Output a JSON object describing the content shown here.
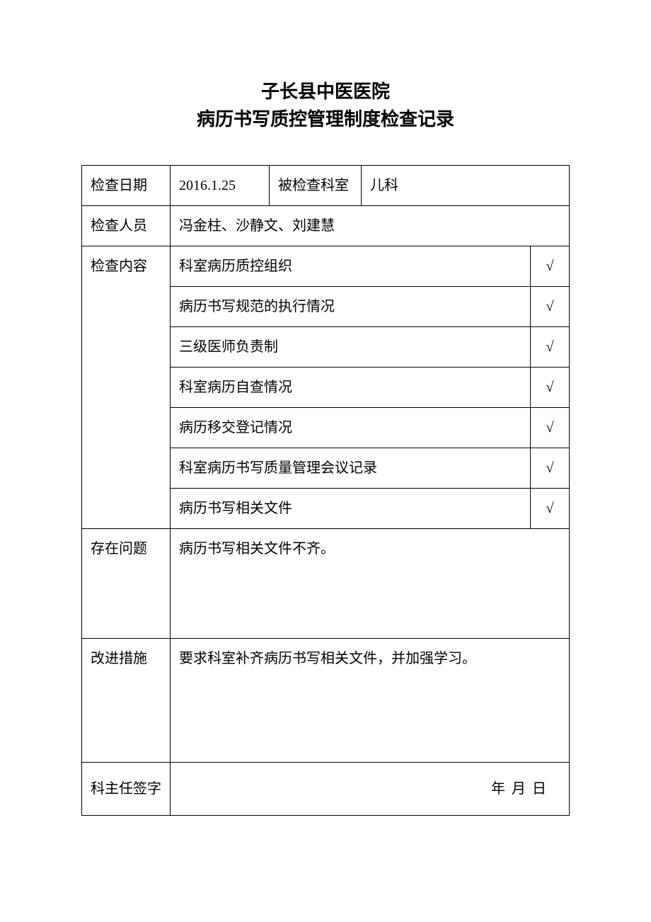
{
  "header": {
    "line1": "子长县中医医院",
    "line2": "病历书写质控管理制度检查记录"
  },
  "labels": {
    "inspection_date": "检查日期",
    "inspected_department": "被检查科室",
    "inspectors": "检查人员",
    "inspection_content": "检查内容",
    "problems": "存在问题",
    "improvements": "改进措施",
    "director_signature": "科主任签字"
  },
  "values": {
    "inspection_date": "2016.1.25",
    "inspected_department": "儿科",
    "inspectors": "冯金柱、沙静文、刘建慧",
    "problems": "病历书写相关文件不齐。",
    "improvements": "要求科室补齐病历书写相关文件，并加强学习。",
    "signature_date": "年    月    日"
  },
  "checklist": [
    {
      "item": "科室病历质控组织",
      "mark": "√"
    },
    {
      "item": "病历书写规范的执行情况",
      "mark": "√"
    },
    {
      "item": "三级医师负责制",
      "mark": "√"
    },
    {
      "item": "科室病历自查情况",
      "mark": "√"
    },
    {
      "item": "病历移交登记情况",
      "mark": "√"
    },
    {
      "item": "科室病历书写质量管理会议记录",
      "mark": "√"
    },
    {
      "item": "病历书写相关文件",
      "mark": "√"
    }
  ],
  "style": {
    "page_background": "#ffffff",
    "text_color": "#000000",
    "border_color": "#000000",
    "title_fontsize": 26,
    "body_fontsize": 20
  }
}
